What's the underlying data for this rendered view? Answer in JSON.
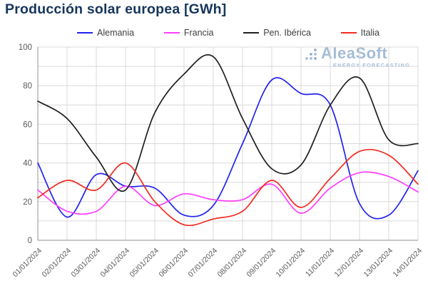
{
  "title": "Producción solar europea [GWh]",
  "watermark": {
    "brand": "AleaSoft",
    "tagline": "ENERGY FORECASTING"
  },
  "colors": {
    "title": "#16365c",
    "axis_text": "#595959",
    "grid": "#d9d9d9",
    "axis_line": "#a6a6a6",
    "watermark": "#6f94bd",
    "alemania": "#2222ef",
    "francia": "#ff3dfd",
    "pen_iberica": "#1f1f1f",
    "italia": "#f22b20"
  },
  "chart_data": {
    "type": "line",
    "title": "Producción solar europea [GWh]",
    "xlabel": "",
    "ylabel": "",
    "x": [
      "01/01/2024",
      "02/01/2024",
      "03/01/2024",
      "04/01/2024",
      "05/01/2024",
      "06/01/2024",
      "07/01/2024",
      "08/01/2024",
      "09/01/2024",
      "10/01/2024",
      "11/01/2024",
      "12/01/2024",
      "13/01/2024",
      "14/01/2024"
    ],
    "series": [
      {
        "name": "Alemania",
        "color": "#2222ef",
        "values": [
          40,
          12,
          34,
          28,
          27,
          13,
          18,
          50,
          83,
          76,
          70,
          19,
          13,
          36
        ]
      },
      {
        "name": "Francia",
        "color": "#ff3dfd",
        "values": [
          26,
          15,
          15,
          28,
          18,
          24,
          21,
          21,
          29,
          14,
          27,
          35,
          33,
          25
        ]
      },
      {
        "name": "Pen. Ibérica",
        "color": "#1f1f1f",
        "values": [
          72,
          63,
          43,
          26,
          66,
          86,
          95,
          63,
          37,
          39,
          70,
          84,
          52,
          50
        ]
      },
      {
        "name": "Italia",
        "color": "#f22b20",
        "values": [
          22,
          31,
          26,
          40,
          20,
          8,
          11,
          15,
          31,
          17,
          32,
          46,
          44,
          29
        ]
      }
    ],
    "ylim": [
      0,
      100
    ],
    "y_major_ticks": [
      0,
      20,
      40,
      60,
      80,
      100
    ],
    "y_minor_step": 10,
    "grid": true,
    "legend_position": "top",
    "x_tick_rotation": -45
  }
}
